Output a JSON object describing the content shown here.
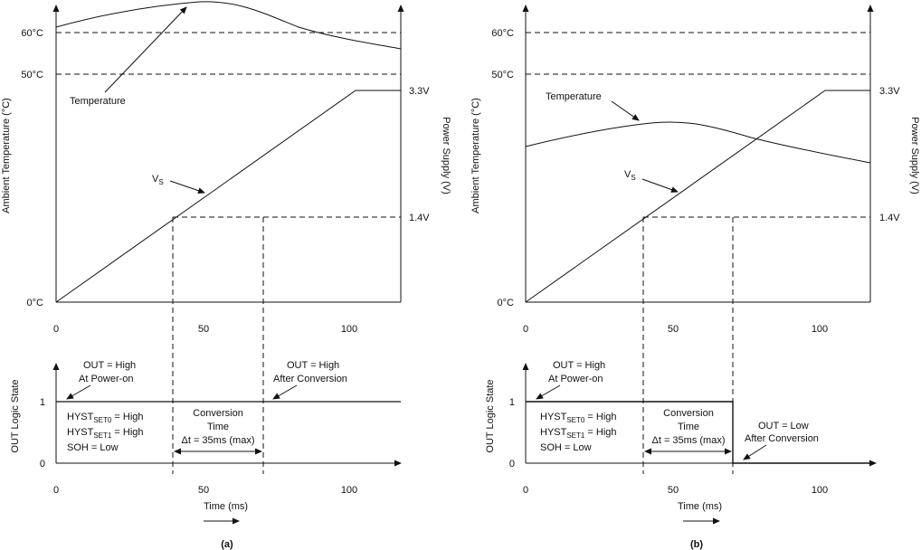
{
  "panels": [
    {
      "id": "a",
      "caption": "(a)",
      "upper_ylabel": "Ambient Temperature (°C)",
      "right_ylabel": "Power Supply (V)",
      "lower_ylabel": "OUT Logic State",
      "xlabel": "Time (ms)",
      "temp_ticks": [
        "60°C",
        "50°C",
        "0°C"
      ],
      "voltage_ticks": [
        "3.3V",
        "1.4V"
      ],
      "x_ticks_upper": [
        "0",
        "50",
        "100"
      ],
      "x_ticks_lower": [
        "0",
        "50",
        "100"
      ],
      "logic_ticks": [
        "1",
        "0"
      ],
      "temperature_label": "Temperature",
      "vs_label": "V",
      "vs_sub": "S",
      "note_power_on": [
        "OUT = High",
        "At Power-on"
      ],
      "note_after": [
        "OUT = High",
        "After Conversion"
      ],
      "hyst0_text": "HYST",
      "hyst0_sub": "SET0",
      "hyst0_val": " = High",
      "hyst1_text": "HYST",
      "hyst1_sub": "SET1",
      "hyst1_val": " = High",
      "soh_text": "SOH = Low",
      "conv_title": "Conversion",
      "conv_time": "Time",
      "conv_dt": "Δt = 35ms (max)"
    },
    {
      "id": "b",
      "caption": "(b)",
      "upper_ylabel": "Ambient Temperature (°C)",
      "right_ylabel": "Power Supply (V)",
      "lower_ylabel": "OUT Logic State",
      "xlabel": "Time (ms)",
      "temp_ticks": [
        "60°C",
        "50°C",
        "0°C"
      ],
      "voltage_ticks": [
        "3.3V",
        "1.4V"
      ],
      "x_ticks_upper": [
        "0",
        "50",
        "100"
      ],
      "x_ticks_lower": [
        "0",
        "50",
        "100"
      ],
      "logic_ticks": [
        "1",
        "0"
      ],
      "temperature_label": "Temperature",
      "vs_label": "V",
      "vs_sub": "S",
      "note_power_on": [
        "OUT = High",
        "At Power-on"
      ],
      "note_after": [
        "OUT = Low",
        "After Conversion"
      ],
      "hyst0_text": "HYST",
      "hyst0_sub": "SET0",
      "hyst0_val": " = High",
      "hyst1_text": "HYST",
      "hyst1_sub": "SET1",
      "hyst1_val": " = High",
      "soh_text": "SOH = Low",
      "conv_title": "Conversion",
      "conv_time": "Time",
      "conv_dt": "Δt = 35ms (max)"
    }
  ]
}
